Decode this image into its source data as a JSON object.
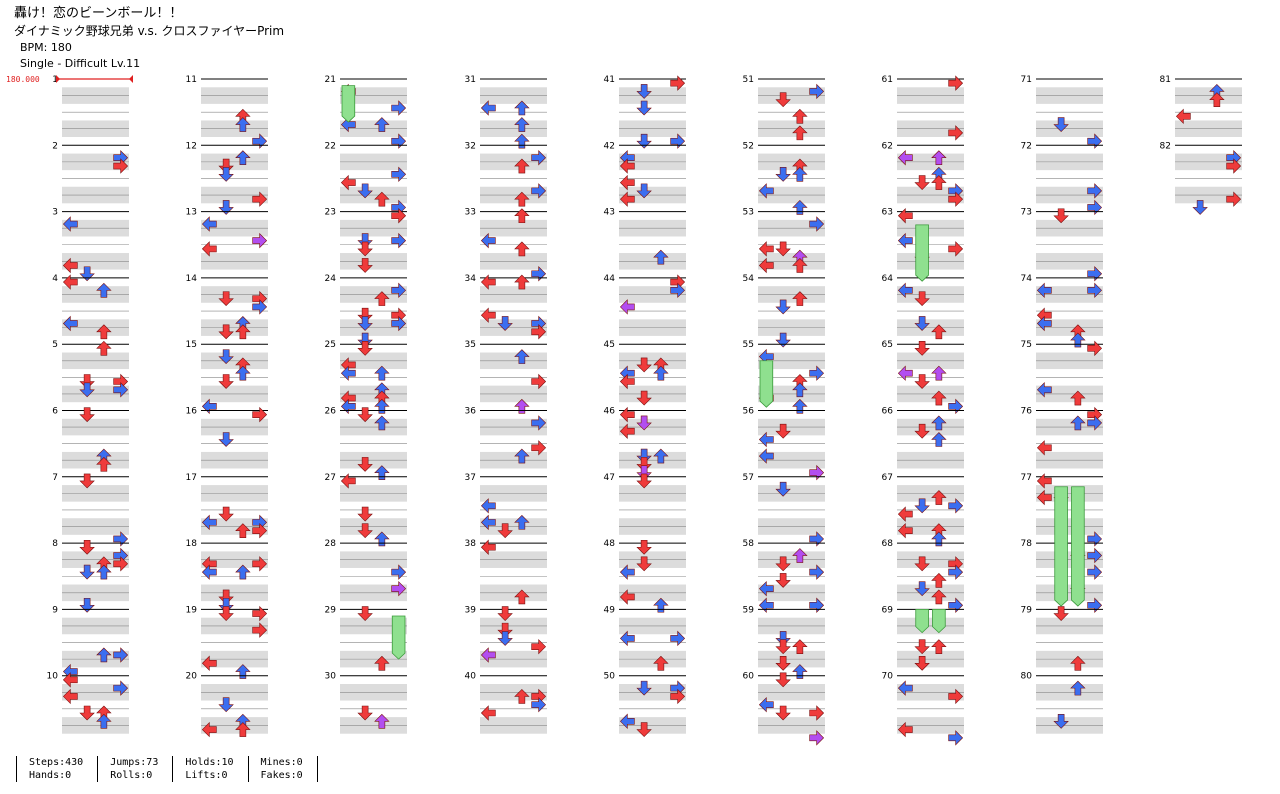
{
  "song": {
    "title": "轟け！恋のビーンボール！！",
    "artist": "ダイナミック野球兄弟 v.s. クロスファイヤーPrim",
    "bpm_text": "BPM: 180",
    "difficulty_text": "Single - Difficult Lv.11"
  },
  "chart": {
    "bpm_marker": "180.000",
    "measure_count": 82,
    "measures_per_column": 10,
    "lanes": 4,
    "colors": {
      "quarter": "#ef3b3b",
      "eighth": "#3b6ef0",
      "sixteenth": "#b24ef0",
      "hold": "#8fe08f",
      "band": "#dcdcdc",
      "bpm": "#e02020"
    },
    "icons": [
      "arrow-left-icon",
      "arrow-down-icon",
      "arrow-up-icon",
      "arrow-right-icon",
      "hold-icon"
    ]
  },
  "stats": [
    [
      "Steps:430",
      "Hands:0"
    ],
    [
      "Jumps:73",
      "Rolls:0"
    ],
    [
      "Holds:10",
      "Lifts:0"
    ],
    [
      "Mines:0",
      "Fakes:0"
    ]
  ]
}
